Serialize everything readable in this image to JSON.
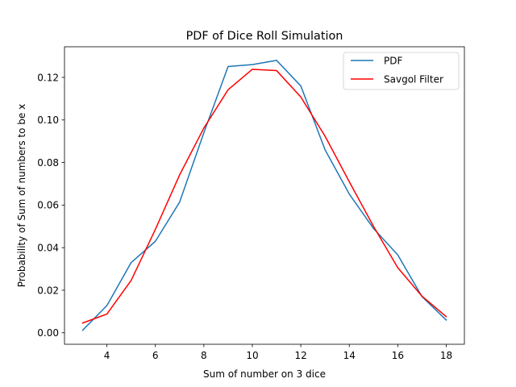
{
  "chart_data": {
    "type": "line",
    "title": "PDF of Dice Roll Simulation",
    "xlabel": "Sum of number on 3 dice",
    "ylabel": "Probability of Sum of numbers to be x",
    "xlim": [
      2.25,
      18.75
    ],
    "ylim": [
      -0.0054,
      0.1344
    ],
    "x_ticks": [
      4,
      6,
      8,
      10,
      12,
      14,
      16,
      18
    ],
    "y_ticks": [
      0.0,
      0.02,
      0.04,
      0.06,
      0.08,
      0.1,
      0.12
    ],
    "x_tick_labels": [
      "4",
      "6",
      "8",
      "10",
      "12",
      "14",
      "16",
      "18"
    ],
    "y_tick_labels": [
      "0.00",
      "0.02",
      "0.04",
      "0.06",
      "0.08",
      "0.10",
      "0.12"
    ],
    "grid": false,
    "legend_position": "top-right",
    "x": [
      3,
      4,
      5,
      6,
      7,
      8,
      9,
      10,
      11,
      12,
      13,
      14,
      15,
      16,
      17,
      18
    ],
    "series": [
      {
        "name": "PDF",
        "color": "#1f77b4",
        "values": [
          0.0012,
          0.0128,
          0.033,
          0.043,
          0.0614,
          0.094,
          0.1251,
          0.126,
          0.128,
          0.116,
          0.086,
          0.0652,
          0.049,
          0.0366,
          0.017,
          0.006
        ]
      },
      {
        "name": "Savgol Filter",
        "color": "#ff0000",
        "values": [
          0.0046,
          0.0088,
          0.0246,
          0.0486,
          0.0742,
          0.0962,
          0.1142,
          0.1238,
          0.1232,
          0.1108,
          0.0924,
          0.071,
          0.05,
          0.0306,
          0.0172,
          0.0076
        ]
      }
    ]
  }
}
